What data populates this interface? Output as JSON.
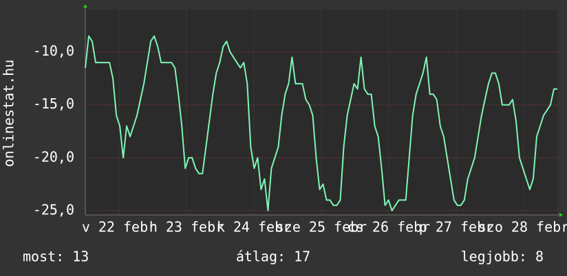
{
  "chart_data": {
    "type": "line",
    "y_label": "onlinestat.hu",
    "xlim": [
      0,
      7
    ],
    "xticks": [
      {
        "value": 0.5,
        "label": "v 22 febr"
      },
      {
        "value": 1.5,
        "label": "h 23 febr"
      },
      {
        "value": 2.5,
        "label": "k 24 febr"
      },
      {
        "value": 3.5,
        "label": "sze 25 febr"
      },
      {
        "value": 4.5,
        "label": "cs 26 febr"
      },
      {
        "value": 5.5,
        "label": "p 27 febr"
      },
      {
        "value": 6.5,
        "label": "szo 28 febr"
      }
    ],
    "ylim": [
      -25.4,
      -6.0
    ],
    "yticks": [
      {
        "value": -10,
        "label": "-10,0"
      },
      {
        "value": -15,
        "label": "-15,0"
      },
      {
        "value": -20,
        "label": "-20,0"
      },
      {
        "value": -25,
        "label": "-25,0"
      }
    ],
    "grid": true,
    "color": "#7ff5b5",
    "values": [
      -11.5,
      -8.5,
      -9,
      -11,
      -11,
      -11,
      -11,
      -11,
      -12.5,
      -16,
      -17,
      -20,
      -17,
      -18,
      -17,
      -16,
      -14.5,
      -13,
      -11,
      -9,
      -8.5,
      -9.5,
      -11,
      -11,
      -11,
      -11,
      -11.5,
      -14,
      -17,
      -21,
      -20,
      -20,
      -21,
      -21.5,
      -21.5,
      -19,
      -16.5,
      -14,
      -12,
      -11,
      -9.5,
      -9,
      -10,
      -10.5,
      -11,
      -11.5,
      -11,
      -13,
      -19,
      -21,
      -20,
      -23,
      -22,
      -25,
      -21,
      -20,
      -19,
      -16,
      -14,
      -13,
      -10.5,
      -13,
      -13,
      -13,
      -14.5,
      -15,
      -16,
      -20,
      -23,
      -22.5,
      -24,
      -24,
      -24.5,
      -24.5,
      -24,
      -19,
      -16,
      -14.5,
      -13,
      -13.5,
      -10.5,
      -13.5,
      -14,
      -14,
      -17,
      -18,
      -21,
      -24.5,
      -24,
      -25,
      -24.5,
      -24,
      -24,
      -24,
      -20,
      -16,
      -14,
      -13,
      -12,
      -10.5,
      -14,
      -14,
      -14.5,
      -17,
      -18,
      -20,
      -22,
      -24,
      -24.5,
      -24.5,
      -24,
      -22,
      -21,
      -20,
      -18,
      -16,
      -14.5,
      -13,
      -12,
      -12,
      -13,
      -15,
      -15,
      -15,
      -14.5,
      -16.5,
      -20,
      -21,
      -22,
      -23,
      -22,
      -18,
      -17,
      -16,
      -15.5,
      -15,
      -13.5,
      -13.5
    ],
    "footer": [
      "most: 13",
      "átlag: 17",
      "legjobb: 8"
    ]
  }
}
